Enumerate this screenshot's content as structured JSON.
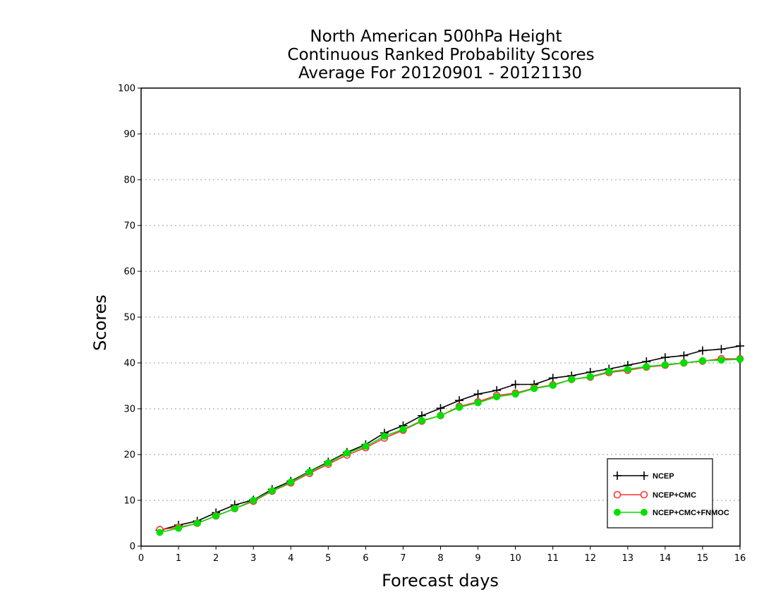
{
  "chart_data": {
    "type": "line",
    "title": [
      "North American 500hPa Height",
      "Continuous Ranked Probability Scores",
      "Average For 20120901 - 20121130"
    ],
    "xlabel": "Forecast days",
    "ylabel": "Scores",
    "xlim": [
      0,
      16
    ],
    "ylim": [
      0,
      100
    ],
    "xticks": [
      "0",
      "1",
      "2",
      "3",
      "4",
      "5",
      "6",
      "7",
      "8",
      "9",
      "10",
      "11",
      "12",
      "13",
      "14",
      "15",
      "16"
    ],
    "yticks": [
      "0",
      "10",
      "20",
      "30",
      "40",
      "50",
      "60",
      "70",
      "80",
      "90",
      "100"
    ],
    "grid": "horizontal dotted",
    "legend_position": "bottom-right",
    "x": [
      0.5,
      1,
      1.5,
      2,
      2.5,
      3,
      3.5,
      4,
      4.5,
      5,
      5.5,
      6,
      6.5,
      7,
      7.5,
      8,
      8.5,
      9,
      9.5,
      10,
      10.5,
      11,
      11.5,
      12,
      12.5,
      13,
      13.5,
      14,
      14.5,
      15,
      15.5,
      16
    ],
    "series": [
      {
        "name": "NCEP",
        "color": "#000000",
        "marker": "plus",
        "values": [
          3.5,
          4.6,
          5.5,
          7.3,
          9,
          10.1,
          12.4,
          14.2,
          16.3,
          18.4,
          20.5,
          22.2,
          24.7,
          26.3,
          28.5,
          30.1,
          31.8,
          33.2,
          34,
          35.3,
          35.3,
          36.7,
          37.2,
          38,
          38.7,
          39.5,
          40.3,
          41.2,
          41.6,
          42.7,
          43,
          43.7
        ]
      },
      {
        "name": "NCEP+CMC",
        "color": "#ff3333",
        "marker": "circle-open",
        "values": [
          3.6,
          4.1,
          5,
          6.6,
          8.2,
          9.8,
          12,
          13.8,
          15.9,
          17.9,
          19.9,
          21.5,
          23.6,
          25.3,
          27.3,
          28.5,
          30.5,
          31.5,
          32.9,
          33.4,
          34.5,
          35.2,
          36.4,
          36.9,
          37.9,
          38.4,
          39.1,
          39.5,
          40,
          40.4,
          40.9,
          40.9
        ]
      },
      {
        "name": "NCEP+CMC+FNMOC",
        "color": "#00e000",
        "marker": "circle-filled",
        "values": [
          3,
          3.9,
          5,
          6.6,
          8.2,
          10,
          12.1,
          14,
          16.2,
          18.2,
          20.3,
          21.8,
          24,
          25.5,
          27.4,
          28.5,
          30.3,
          31.3,
          32.6,
          33.2,
          34.4,
          35.1,
          36.4,
          37,
          38.1,
          38.6,
          39.2,
          39.6,
          40,
          40.5,
          40.6,
          40.8
        ]
      }
    ]
  }
}
